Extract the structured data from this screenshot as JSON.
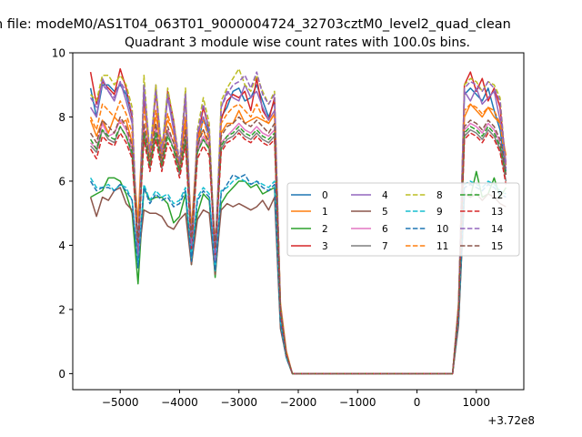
{
  "figure": {
    "suptitle": "n file: modeM0/AS1T04_063T01_9000004724_32703cztM0_level2_quad_clean",
    "offset_label": "+3.72e8"
  },
  "chart_data": {
    "type": "line",
    "title": "Quadrant 3 module wise count rates with 100.0s bins.",
    "xlabel": "",
    "ylabel": "",
    "xlim": [
      -5800,
      1800
    ],
    "ylim": [
      -0.5,
      10.0
    ],
    "x_offset": 372000000,
    "xticks": [
      -5000,
      -4000,
      -3000,
      -2000,
      -1000,
      0,
      1000
    ],
    "xtick_labels": [
      "−5000",
      "−4000",
      "−3000",
      "−2000",
      "−1000",
      "0",
      "1000"
    ],
    "yticks": [
      0,
      2,
      4,
      6,
      8,
      10
    ],
    "ytick_labels": [
      "0",
      "2",
      "4",
      "6",
      "8",
      "10"
    ],
    "grid": false,
    "legend_position": "center-right",
    "legend_columns": 4,
    "x": [
      -5500,
      -5400,
      -5300,
      -5200,
      -5100,
      -5000,
      -4900,
      -4800,
      -4700,
      -4600,
      -4500,
      -4400,
      -4300,
      -4200,
      -4100,
      -4000,
      -3900,
      -3800,
      -3700,
      -3600,
      -3500,
      -3400,
      -3300,
      -3200,
      -3100,
      -3000,
      -2900,
      -2800,
      -2700,
      -2600,
      -2500,
      -2400,
      -2300,
      -2200,
      -2100,
      -2000,
      -1000,
      0,
      500,
      600,
      700,
      800,
      900,
      1000,
      1100,
      1200,
      1300,
      1400,
      1500
    ],
    "series": [
      {
        "name": "0",
        "color": "#1f77b4",
        "dash": "solid",
        "values": [
          8.9,
          8.0,
          9.0,
          9.0,
          8.8,
          9.0,
          8.7,
          8.0,
          3.3,
          9.0,
          6.5,
          8.9,
          6.8,
          8.8,
          7.8,
          6.2,
          8.7,
          3.8,
          7.0,
          8.0,
          7.5,
          3.3,
          8.0,
          8.3,
          8.8,
          8.9,
          8.5,
          8.6,
          9.0,
          8.5,
          8.0,
          8.5,
          2.0,
          0.6,
          0.0,
          0.0,
          0.0,
          0.0,
          0.0,
          0.0,
          2.0,
          8.7,
          8.9,
          8.7,
          8.5,
          8.9,
          8.2,
          7.6,
          6.3
        ]
      },
      {
        "name": "1",
        "color": "#ff7f0e",
        "dash": "solid",
        "values": [
          7.9,
          7.4,
          7.9,
          7.5,
          8.0,
          7.8,
          7.9,
          7.2,
          4.7,
          8.5,
          7.0,
          8.0,
          7.2,
          7.9,
          7.5,
          6.5,
          7.9,
          4.5,
          7.3,
          7.6,
          7.0,
          4.0,
          7.5,
          7.8,
          7.8,
          8.2,
          7.8,
          7.9,
          8.0,
          7.9,
          7.8,
          8.1,
          2.2,
          0.7,
          0.0,
          0.0,
          0.0,
          0.0,
          0.0,
          0.0,
          2.2,
          8.0,
          8.4,
          8.2,
          8.0,
          8.3,
          8.0,
          7.8,
          6.8
        ]
      },
      {
        "name": "2",
        "color": "#2ca02c",
        "dash": "solid",
        "values": [
          5.5,
          5.6,
          5.7,
          6.1,
          6.1,
          6.0,
          5.6,
          5.0,
          2.8,
          5.8,
          5.4,
          5.5,
          5.5,
          5.3,
          4.7,
          4.9,
          5.6,
          3.4,
          5.0,
          5.6,
          5.4,
          3.0,
          5.3,
          5.6,
          5.8,
          6.0,
          6.0,
          5.8,
          5.9,
          5.6,
          5.7,
          5.8,
          1.5,
          0.5,
          0.0,
          0.0,
          0.0,
          0.0,
          0.0,
          0.0,
          1.6,
          5.6,
          5.5,
          6.3,
          5.5,
          5.6,
          6.1,
          5.5,
          5.8
        ]
      },
      {
        "name": "3",
        "color": "#d62728",
        "dash": "solid",
        "values": [
          9.4,
          8.4,
          9.1,
          8.9,
          8.7,
          9.5,
          8.9,
          8.0,
          3.4,
          8.7,
          6.6,
          8.8,
          6.5,
          8.8,
          7.9,
          6.3,
          8.7,
          3.6,
          7.3,
          8.3,
          7.6,
          3.1,
          7.9,
          8.5,
          8.7,
          8.6,
          8.8,
          8.2,
          9.2,
          8.2,
          7.9,
          8.6,
          2.0,
          0.6,
          0.0,
          0.0,
          0.0,
          0.0,
          0.0,
          0.0,
          2.0,
          9.0,
          9.4,
          8.8,
          9.2,
          8.5,
          8.9,
          8.3,
          6.5
        ]
      },
      {
        "name": "4",
        "color": "#9467bd",
        "dash": "solid",
        "values": [
          8.3,
          8.0,
          9.2,
          8.8,
          8.5,
          9.1,
          8.5,
          7.8,
          3.6,
          8.9,
          6.6,
          9.0,
          6.7,
          8.6,
          7.6,
          6.4,
          8.8,
          3.9,
          7.5,
          8.0,
          7.3,
          3.3,
          8.3,
          8.8,
          8.6,
          8.5,
          9.0,
          8.6,
          8.8,
          8.3,
          7.9,
          8.2,
          2.0,
          0.6,
          0.0,
          0.0,
          0.0,
          0.0,
          0.0,
          0.0,
          2.1,
          8.8,
          8.5,
          8.9,
          8.4,
          8.6,
          8.8,
          7.9,
          6.6
        ]
      },
      {
        "name": "5",
        "color": "#8c564b",
        "dash": "solid",
        "values": [
          5.5,
          4.9,
          5.5,
          5.4,
          5.7,
          5.8,
          5.3,
          5.1,
          3.5,
          5.1,
          5.0,
          5.0,
          4.9,
          4.6,
          4.5,
          4.8,
          5.0,
          3.4,
          4.8,
          5.1,
          5.0,
          3.1,
          5.1,
          5.3,
          5.2,
          5.3,
          5.2,
          5.1,
          5.2,
          5.4,
          5.1,
          5.5,
          1.4,
          0.5,
          0.0,
          0.0,
          0.0,
          0.0,
          0.0,
          0.0,
          1.5,
          5.6,
          5.5,
          5.6,
          5.4,
          5.6,
          5.5,
          5.3,
          5.2
        ]
      },
      {
        "name": "6",
        "color": "#e377c2",
        "dash": "solid",
        "values": [
          7.2,
          7.0,
          7.8,
          7.4,
          7.5,
          7.9,
          7.6,
          7.0,
          4.2,
          7.7,
          6.6,
          7.7,
          6.5,
          7.6,
          7.2,
          6.3,
          7.5,
          4.2,
          7.0,
          7.4,
          7.1,
          3.9,
          7.2,
          7.4,
          7.6,
          7.8,
          7.6,
          7.5,
          7.7,
          7.5,
          7.4,
          7.6,
          2.0,
          0.6,
          0.0,
          0.0,
          0.0,
          0.0,
          0.0,
          0.0,
          2.0,
          7.6,
          7.8,
          7.7,
          7.5,
          7.8,
          7.6,
          7.2,
          6.2
        ]
      },
      {
        "name": "7",
        "color": "#7f7f7f",
        "dash": "solid",
        "values": [
          7.1,
          6.9,
          7.6,
          7.3,
          7.2,
          7.7,
          7.4,
          6.8,
          4.0,
          7.5,
          6.4,
          7.5,
          6.4,
          7.5,
          7.0,
          6.2,
          7.3,
          4.0,
          6.9,
          7.3,
          7.0,
          3.8,
          7.0,
          7.3,
          7.4,
          7.6,
          7.4,
          7.3,
          7.5,
          7.3,
          7.2,
          7.4,
          1.9,
          0.6,
          0.0,
          0.0,
          0.0,
          0.0,
          0.0,
          0.0,
          1.9,
          7.4,
          7.6,
          7.5,
          7.3,
          7.6,
          7.4,
          7.0,
          6.0
        ]
      },
      {
        "name": "8",
        "color": "#bcbd22",
        "dash": "dashed",
        "values": [
          8.7,
          8.5,
          9.3,
          9.3,
          9.0,
          9.3,
          9.0,
          8.3,
          3.6,
          9.3,
          6.8,
          9.0,
          6.9,
          8.9,
          7.9,
          6.6,
          8.9,
          4.0,
          7.6,
          8.6,
          7.8,
          3.5,
          8.5,
          8.9,
          9.2,
          9.5,
          9.0,
          8.8,
          9.3,
          8.8,
          8.4,
          8.8,
          2.1,
          0.6,
          0.0,
          0.0,
          0.0,
          0.0,
          0.0,
          0.0,
          2.1,
          9.0,
          9.2,
          9.1,
          8.8,
          9.1,
          9.0,
          8.6,
          6.4
        ]
      },
      {
        "name": "9",
        "color": "#17becf",
        "dash": "dashed",
        "values": [
          6.1,
          5.8,
          5.8,
          5.9,
          5.7,
          5.9,
          5.8,
          5.4,
          3.4,
          5.9,
          5.4,
          5.7,
          5.5,
          5.6,
          5.3,
          5.4,
          5.8,
          3.6,
          5.5,
          5.8,
          5.6,
          3.2,
          5.7,
          5.8,
          6.0,
          6.1,
          6.0,
          5.9,
          6.0,
          5.9,
          5.8,
          6.0,
          1.6,
          0.5,
          0.0,
          0.0,
          0.0,
          0.0,
          0.0,
          0.0,
          1.7,
          5.9,
          6.0,
          5.9,
          5.8,
          6.0,
          5.9,
          5.7,
          5.6
        ]
      },
      {
        "name": "10",
        "color": "#1f77b4",
        "dash": "dashed",
        "values": [
          6.0,
          5.7,
          5.8,
          5.8,
          5.7,
          5.9,
          5.7,
          5.4,
          3.3,
          5.8,
          5.3,
          5.6,
          5.4,
          5.5,
          5.2,
          5.3,
          5.7,
          3.5,
          5.4,
          5.7,
          5.5,
          3.2,
          5.6,
          5.9,
          6.2,
          6.1,
          6.2,
          5.9,
          6.0,
          5.8,
          5.7,
          5.9,
          1.6,
          0.5,
          0.0,
          0.0,
          0.0,
          0.0,
          0.0,
          0.0,
          1.7,
          5.8,
          5.9,
          5.8,
          5.7,
          5.9,
          5.8,
          5.6,
          5.5
        ]
      },
      {
        "name": "11",
        "color": "#ff7f0e",
        "dash": "dashed",
        "values": [
          8.0,
          7.6,
          8.4,
          8.2,
          8.0,
          8.5,
          8.1,
          7.5,
          3.8,
          8.3,
          6.6,
          8.2,
          6.7,
          8.1,
          7.4,
          6.4,
          8.0,
          4.1,
          7.3,
          7.9,
          7.3,
          3.6,
          7.8,
          8.1,
          8.3,
          8.4,
          8.2,
          8.0,
          8.4,
          8.0,
          7.8,
          8.1,
          2.1,
          0.6,
          0.0,
          0.0,
          0.0,
          0.0,
          0.0,
          0.0,
          2.1,
          8.2,
          8.4,
          8.3,
          8.1,
          8.3,
          8.2,
          7.8,
          6.5
        ]
      },
      {
        "name": "12",
        "color": "#2ca02c",
        "dash": "dashed",
        "values": [
          7.3,
          7.0,
          7.6,
          7.4,
          7.3,
          7.7,
          7.4,
          6.9,
          4.0,
          7.5,
          6.5,
          7.5,
          6.5,
          7.4,
          7.0,
          6.3,
          7.3,
          4.1,
          6.9,
          7.3,
          7.0,
          3.8,
          7.1,
          7.4,
          7.5,
          7.7,
          7.5,
          7.4,
          7.6,
          7.4,
          7.3,
          7.5,
          2.0,
          0.6,
          0.0,
          0.0,
          0.0,
          0.0,
          0.0,
          0.0,
          2.0,
          7.5,
          7.7,
          7.6,
          7.4,
          7.7,
          7.5,
          7.1,
          6.2
        ]
      },
      {
        "name": "13",
        "color": "#d62728",
        "dash": "dashed",
        "values": [
          7.0,
          6.7,
          7.4,
          7.2,
          7.1,
          7.5,
          7.2,
          6.7,
          3.9,
          7.3,
          6.3,
          7.3,
          6.3,
          7.2,
          6.8,
          6.1,
          7.1,
          3.9,
          6.7,
          7.1,
          6.8,
          3.7,
          6.9,
          7.2,
          7.3,
          7.5,
          7.3,
          7.2,
          7.4,
          7.2,
          7.1,
          7.3,
          1.9,
          0.6,
          0.0,
          0.0,
          0.0,
          0.0,
          0.0,
          0.0,
          1.9,
          7.3,
          7.5,
          7.4,
          7.2,
          7.5,
          7.3,
          6.9,
          5.9
        ]
      },
      {
        "name": "14",
        "color": "#9467bd",
        "dash": "dashed",
        "values": [
          8.6,
          8.3,
          9.0,
          8.8,
          8.6,
          9.1,
          8.8,
          8.1,
          3.7,
          9.0,
          6.9,
          8.8,
          6.9,
          8.7,
          7.8,
          6.6,
          8.7,
          4.0,
          7.5,
          8.4,
          7.6,
          3.5,
          8.3,
          8.7,
          9.0,
          9.1,
          9.3,
          8.9,
          9.4,
          8.7,
          8.4,
          8.7,
          2.1,
          0.6,
          0.0,
          0.0,
          0.0,
          0.0,
          0.0,
          0.0,
          2.1,
          8.9,
          9.1,
          9.0,
          8.8,
          9.1,
          8.9,
          8.5,
          6.4
        ]
      },
      {
        "name": "15",
        "color": "#8c564b",
        "dash": "dashed",
        "values": [
          7.5,
          7.2,
          7.9,
          7.7,
          7.5,
          8.0,
          7.7,
          7.1,
          4.1,
          7.8,
          6.6,
          7.8,
          6.6,
          7.7,
          7.2,
          6.4,
          7.6,
          4.2,
          7.1,
          7.6,
          7.2,
          3.9,
          7.4,
          7.7,
          7.8,
          8.0,
          7.8,
          7.7,
          7.9,
          7.7,
          7.5,
          7.8,
          2.0,
          0.6,
          0.0,
          0.0,
          0.0,
          0.0,
          0.0,
          0.0,
          2.0,
          7.7,
          7.9,
          7.8,
          7.6,
          7.9,
          7.7,
          7.3,
          6.2
        ]
      }
    ]
  }
}
